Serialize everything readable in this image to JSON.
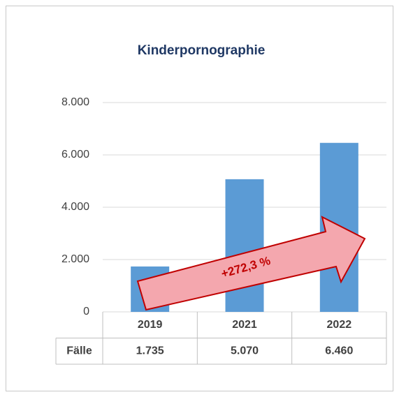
{
  "chart_data": {
    "type": "bar",
    "title": "Kinderpornographie",
    "categories": [
      "2019",
      "2021",
      "2022"
    ],
    "series": [
      {
        "name": "Fälle",
        "color": "#5b9bd5",
        "values": [
          1735,
          5070,
          6460
        ],
        "value_labels": [
          "1.735",
          "5.070",
          "6.460"
        ]
      }
    ],
    "ylim": [
      0,
      8000
    ],
    "yticks": [
      0,
      {
        "value": 2000,
        "label": "2.000"
      },
      {
        "value": 4000,
        "label": "4.000"
      },
      {
        "value": 6000,
        "label": "6.000"
      },
      {
        "value": 8000,
        "label": "8.000"
      }
    ],
    "grid": true,
    "annotation": "+272,3 %"
  }
}
